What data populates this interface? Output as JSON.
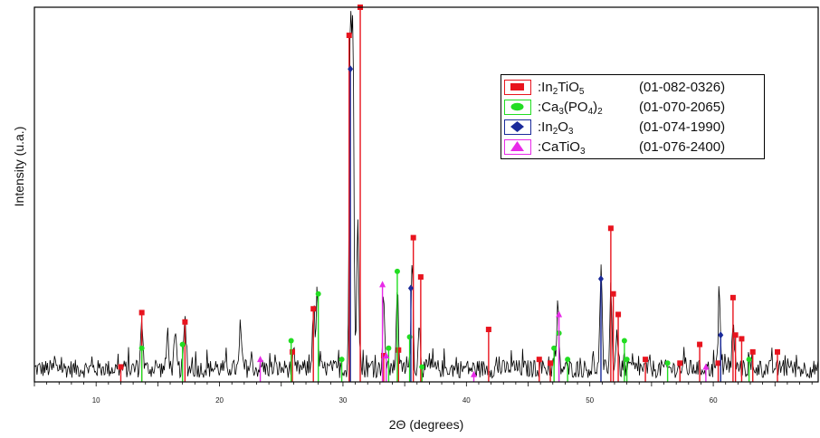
{
  "chart_data": {
    "type": "line",
    "title": "",
    "xlabel": "2Θ (degrees)",
    "ylabel": "Intensity (u.a.)",
    "xlim": [
      5,
      68.5
    ],
    "ylim": [
      0,
      1.0
    ],
    "x_ticks": [
      10,
      20,
      30,
      40,
      50,
      60
    ],
    "x_tick_labels": [
      "10",
      "20",
      "30",
      "40",
      "50",
      "60"
    ],
    "y_ticks": [],
    "grid": false,
    "legend_position": "top-right",
    "noise_floor": 0.035,
    "noise_amplitude": 0.07,
    "noise_points": 900,
    "pattern_peaks": [
      {
        "x": 13.7,
        "y": 0.14
      },
      {
        "x": 15.8,
        "y": 0.1
      },
      {
        "x": 16.4,
        "y": 0.08
      },
      {
        "x": 17.2,
        "y": 0.13
      },
      {
        "x": 21.7,
        "y": 0.1
      },
      {
        "x": 27.6,
        "y": 0.16
      },
      {
        "x": 27.9,
        "y": 0.2
      },
      {
        "x": 30.6,
        "y": 0.93
      },
      {
        "x": 30.8,
        "y": 0.88
      },
      {
        "x": 31.2,
        "y": 0.42
      },
      {
        "x": 33.3,
        "y": 0.2
      },
      {
        "x": 34.4,
        "y": 0.22
      },
      {
        "x": 35.6,
        "y": 0.3
      },
      {
        "x": 36.2,
        "y": 0.12
      },
      {
        "x": 47.4,
        "y": 0.16
      },
      {
        "x": 50.9,
        "y": 0.26
      },
      {
        "x": 51.7,
        "y": 0.2
      },
      {
        "x": 52.2,
        "y": 0.1
      },
      {
        "x": 60.5,
        "y": 0.2
      },
      {
        "x": 61.6,
        "y": 0.12
      }
    ],
    "series": [
      {
        "name": "In2TiO5",
        "color": "#e8141e",
        "marker": "square",
        "code": "(01-082-0326)",
        "x": [
          12.0,
          13.7,
          17.2,
          25.9,
          27.6,
          30.5,
          31.4,
          33.3,
          34.5,
          35.7,
          36.3,
          41.8,
          45.9,
          46.8,
          51.7,
          51.9,
          52.3,
          54.5,
          57.3,
          58.9,
          60.4,
          61.6,
          61.8,
          62.3,
          63.2,
          65.2
        ],
        "y": [
          0.04,
          0.185,
          0.16,
          0.08,
          0.195,
          0.925,
          1.0,
          0.07,
          0.085,
          0.385,
          0.28,
          0.14,
          0.06,
          0.05,
          0.41,
          0.235,
          0.18,
          0.06,
          0.05,
          0.1,
          0.05,
          0.225,
          0.125,
          0.115,
          0.08,
          0.08
        ]
      },
      {
        "name": "Ca3(PO4)2",
        "color": "#22dd22",
        "marker": "circle",
        "code": "(01-070-2065)",
        "x": [
          13.7,
          17.0,
          25.8,
          28.0,
          29.9,
          33.7,
          34.4,
          35.4,
          36.4,
          47.1,
          47.5,
          48.2,
          52.8,
          53.0,
          56.3,
          62.9
        ],
        "y": [
          0.09,
          0.1,
          0.11,
          0.235,
          0.06,
          0.09,
          0.295,
          0.12,
          0.04,
          0.09,
          0.13,
          0.06,
          0.11,
          0.06,
          0.05,
          0.06
        ]
      },
      {
        "name": "In2O3",
        "color": "#1a2a9a",
        "marker": "diamond",
        "code": "(01-074-1990)",
        "x": [
          30.6,
          35.5,
          50.9,
          60.6
        ],
        "y": [
          0.835,
          0.25,
          0.275,
          0.125
        ]
      },
      {
        "name": "CaTiO3",
        "color": "#e82ae8",
        "marker": "triangle",
        "code": "(01-076-2400)",
        "x": [
          23.3,
          33.2,
          33.5,
          40.6,
          47.5,
          59.4
        ],
        "y": [
          0.06,
          0.26,
          0.07,
          0.02,
          0.18,
          0.04
        ]
      }
    ]
  },
  "legend": {
    "entries": [
      {
        "base": ":In",
        "sub1": "2",
        "mid": "TiO",
        "sub2": "5",
        "end": "",
        "code": "(01-082-0326)"
      },
      {
        "base": ":Ca",
        "sub1": "3",
        "mid": "(PO",
        "sub2": "4",
        "end": ")2",
        "code": "(01-070-2065)"
      },
      {
        "base": ":In",
        "sub1": "2",
        "mid": "O",
        "sub2": "3",
        "end": "",
        "code": "(01-074-1990)"
      },
      {
        "base": ":CaTiO",
        "sub1": "3",
        "mid": "",
        "sub2": "",
        "end": "",
        "code": "(01-076-2400)"
      }
    ]
  }
}
